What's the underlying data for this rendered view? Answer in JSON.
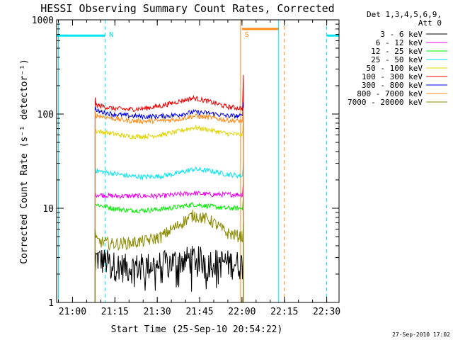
{
  "chart_data": {
    "type": "line",
    "title": "HESSI Observing Summary Count Rates, Corrected",
    "xlabel": "Start Time (25-Sep-10 20:54:22)",
    "ylabel": "Corrected Count Rate (s⁻¹ detector⁻¹)",
    "ylog": true,
    "ylim": [
      1,
      1000
    ],
    "xlim": [
      "20:54:22",
      "22:34:22"
    ],
    "x_ticks": [
      "21:00",
      "21:15",
      "21:30",
      "21:45",
      "22:00",
      "22:15",
      "22:30"
    ],
    "y_ticks": [
      "1",
      "10",
      "100",
      "1000"
    ],
    "legend_title_lines": [
      "Det 1,3,4,5,6,9,",
      "Att 0"
    ],
    "legend_position": "right",
    "timestamp": "27-Sep-2010 17:02",
    "annotations": [
      {
        "text": "N",
        "color": "#00e5ee",
        "time": "21:11:30"
      },
      {
        "text": "S",
        "color": "#ff8c1a",
        "time": "21:59:30"
      }
    ],
    "bars": [
      {
        "name": "night",
        "color": "#00e5ee",
        "y": 680,
        "segments": [
          [
            "20:54:22",
            "21:11:30"
          ],
          [
            "22:30:00",
            "22:34:22"
          ]
        ]
      },
      {
        "name": "saa",
        "color": "#ff8c1a",
        "y": 800,
        "segments": [
          [
            "22:00:00",
            "22:13:00"
          ]
        ]
      }
    ],
    "vlines": [
      {
        "color": "#00e5ee",
        "time": "20:55:00",
        "dash": false
      },
      {
        "color": "#00e5ee",
        "time": "21:11:30",
        "dash": true
      },
      {
        "color": "#00e5ee",
        "time": "22:13:00",
        "dash": false
      },
      {
        "color": "#00e5ee",
        "time": "22:30:00",
        "dash": true
      },
      {
        "color": "#ff8c1a",
        "time": "21:59:30",
        "dash": false
      },
      {
        "color": "#ff8c1a",
        "time": "22:15:00",
        "dash": true
      }
    ],
    "series": [
      {
        "name": "3 - 6 keV",
        "color": "#000000",
        "start": 2,
        "levels": [
          3.0,
          2.6,
          2.4,
          2.5,
          2.6,
          2.8,
          3.0,
          2.8,
          2.7,
          2.6
        ]
      },
      {
        "name": "6 - 12 keV",
        "color": "#ee00ee",
        "start": 15,
        "levels": [
          14,
          13.5,
          13.5,
          13.5,
          13.5,
          14,
          14.5,
          14,
          14,
          14
        ]
      },
      {
        "name": "12 - 25 keV",
        "color": "#00ee00",
        "start": 11,
        "levels": [
          11,
          10,
          9.5,
          9.5,
          9.8,
          10.3,
          11,
          10.5,
          10,
          10
        ]
      },
      {
        "name": "25 - 50 keV",
        "color": "#00e5ee",
        "start": 28,
        "levels": [
          25,
          23.5,
          22,
          21.5,
          22,
          23.5,
          26,
          25,
          23,
          22
        ]
      },
      {
        "name": "50 - 100 keV",
        "color": "#e0d400",
        "start": 70,
        "levels": [
          66,
          62,
          58,
          58,
          60,
          65,
          72,
          68,
          62,
          60
        ]
      },
      {
        "name": "100 - 300 keV",
        "color": "#ee0000",
        "start": 150,
        "levels": [
          125,
          115,
          112,
          115,
          122,
          135,
          148,
          135,
          120,
          115
        ]
      },
      {
        "name": "300 - 800 keV",
        "color": "#0000ee",
        "start": 120,
        "levels": [
          108,
          100,
          96,
          94,
          95,
          98,
          105,
          102,
          96,
          95
        ]
      },
      {
        "name": "800 - 7000 keV",
        "color": "#ff8c1a",
        "start": 110,
        "levels": [
          97,
          90,
          85,
          84,
          85,
          88,
          95,
          92,
          86,
          84
        ]
      },
      {
        "name": "7000 - 20000 keV",
        "color": "#8b8b00",
        "start": 6,
        "levels": [
          4.5,
          4.2,
          4.3,
          4.5,
          5,
          6.5,
          8.5,
          7.5,
          5.5,
          5
        ]
      }
    ]
  }
}
